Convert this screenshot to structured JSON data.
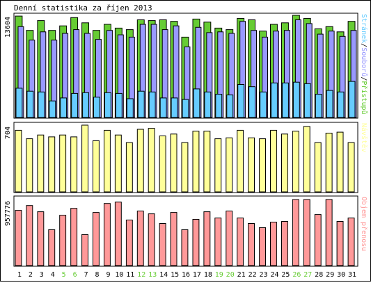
{
  "chart_data": {
    "type": "bar",
    "title": "Denní statistika za říjen 2013",
    "categories": [
      "1",
      "2",
      "3",
      "4",
      "5",
      "6",
      "7",
      "8",
      "9",
      "10",
      "11",
      "12",
      "13",
      "14",
      "15",
      "16",
      "17",
      "18",
      "19",
      "20",
      "21",
      "22",
      "23",
      "24",
      "25",
      "26",
      "27",
      "28",
      "29",
      "30",
      "31"
    ],
    "weekend_days": [
      "5",
      "6",
      "12",
      "13",
      "19",
      "20",
      "26",
      "27"
    ],
    "panels": [
      {
        "id": "hits",
        "max_label": "13604",
        "ymax": 13604,
        "legend": [
          {
            "name": "Stránek",
            "color": "#66ccff"
          },
          {
            "sep": "/",
            "color": "#000000"
          },
          {
            "name": "Souborů",
            "color": "#9999ff"
          },
          {
            "sep": "/",
            "color": "#000000"
          },
          {
            "name": "Přístupů",
            "color": "#66cc33"
          }
        ],
        "series": [
          {
            "name": "Přístupů",
            "color": "#66cc33",
            "values": [
              13500,
              11600,
              12900,
              11600,
              12200,
              13300,
              12600,
              11600,
              12400,
              11900,
              11700,
              13000,
              12900,
              13000,
              12800,
              10700,
              13100,
              12700,
              11900,
              11700,
              13200,
              13000,
              11500,
              12400,
              12600,
              13604,
              13200,
              11800,
              12100,
              11400,
              12800
            ]
          },
          {
            "name": "Souborů",
            "color": "#9999ff",
            "values": [
              12100,
              10300,
              11400,
              10300,
              11200,
              11700,
              11200,
              10400,
              11600,
              11000,
              10700,
              12400,
              12400,
              11700,
              12200,
              9400,
              12000,
              11300,
              11400,
              11200,
              12800,
              11600,
              10700,
              11500,
              11600,
              13000,
              12500,
              11100,
              11500,
              10800,
              11600
            ]
          },
          {
            "name": "Stránek",
            "color": "#66ccff",
            "values": [
              3900,
              3500,
              3400,
              2200,
              2600,
              3200,
              3300,
              2700,
              3300,
              3200,
              2500,
              3500,
              3400,
              2600,
              2600,
              2400,
              3800,
              3400,
              3100,
              3000,
              4400,
              4100,
              3400,
              4600,
              4600,
              4700,
              4500,
              3100,
              3600,
              3400,
              4800
            ]
          }
        ]
      },
      {
        "id": "visits",
        "max_label": "704",
        "ymax": 704,
        "legend": [
          {
            "name": "Návštěv",
            "color": "#ffff99"
          }
        ],
        "series": [
          {
            "name": "Návštěv",
            "color": "#ffff99",
            "values": [
              650,
              560,
              600,
              580,
              600,
              580,
              704,
              540,
              650,
              600,
              520,
              660,
              670,
              590,
              610,
              520,
              640,
              640,
              560,
              570,
              650,
              570,
              560,
              650,
              610,
              640,
              690,
              520,
              620,
              630,
              520
            ]
          }
        ]
      },
      {
        "id": "traffic",
        "max_label": "957776",
        "ymax": 957776,
        "legend": [
          {
            "name": "Objem přenosu",
            "color": "#ff9999"
          }
        ],
        "series": [
          {
            "name": "Objem přenosu",
            "color": "#ff9999",
            "values": [
              800000,
              870000,
              780000,
              520000,
              730000,
              830000,
              450000,
              770000,
              900000,
              920000,
              660000,
              790000,
              750000,
              610000,
              770000,
              520000,
              670000,
              780000,
              690000,
              790000,
              690000,
              610000,
              550000,
              630000,
              640000,
              957776,
              957776,
              740000,
              957776,
              640000,
              690000
            ]
          }
        ]
      }
    ]
  }
}
